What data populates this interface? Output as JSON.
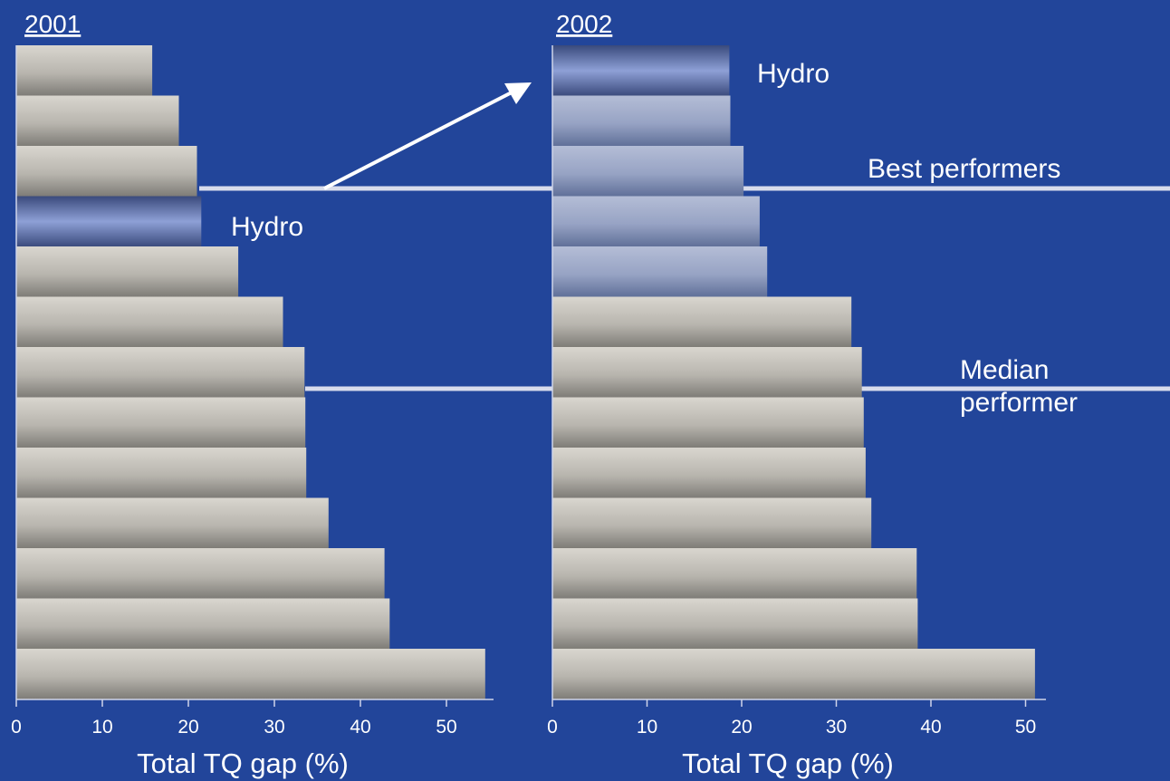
{
  "colors": {
    "background": "#22459a",
    "bar_light": "#d9d6cf",
    "bar_dark": "#7d7b76",
    "hydro_light": "#8ea0d6",
    "hydro_dark": "#3a4a7c",
    "best_light": "#b4bdd6",
    "best_dark": "#5f6f98",
    "reference_line": "#d8dcec"
  },
  "chart_data": [
    {
      "type": "bar",
      "orientation": "horizontal",
      "title": "2001",
      "xlabel": "Total TQ gap (%)",
      "xlim": [
        0,
        55
      ],
      "xticks": [
        0,
        10,
        20,
        30,
        40,
        50
      ],
      "values": [
        15.8,
        18.9,
        21.0,
        21.5,
        25.8,
        31.0,
        33.5,
        33.6,
        33.7,
        36.3,
        42.8,
        43.4,
        54.5
      ],
      "highlight": [
        {
          "index": 3,
          "label": "Hydro"
        }
      ],
      "reference_lines": [
        {
          "label": "Best performers",
          "after_index": 2
        },
        {
          "label": "Median performer",
          "after_index": 6
        }
      ]
    },
    {
      "type": "bar",
      "orientation": "horizontal",
      "title": "2002",
      "xlabel": "Total TQ gap (%)",
      "xlim": [
        0,
        51
      ],
      "xticks": [
        0,
        10,
        20,
        30,
        40,
        50
      ],
      "values": [
        18.7,
        18.8,
        20.2,
        21.9,
        22.7,
        31.6,
        32.7,
        32.9,
        33.1,
        33.7,
        38.5,
        38.6,
        51.0
      ],
      "highlight": [
        {
          "index": 0,
          "label": "Hydro"
        }
      ],
      "best_performers_count": 5,
      "reference_lines": [
        {
          "label": "Best performers"
        },
        {
          "label": "Median performer"
        }
      ]
    }
  ]
}
